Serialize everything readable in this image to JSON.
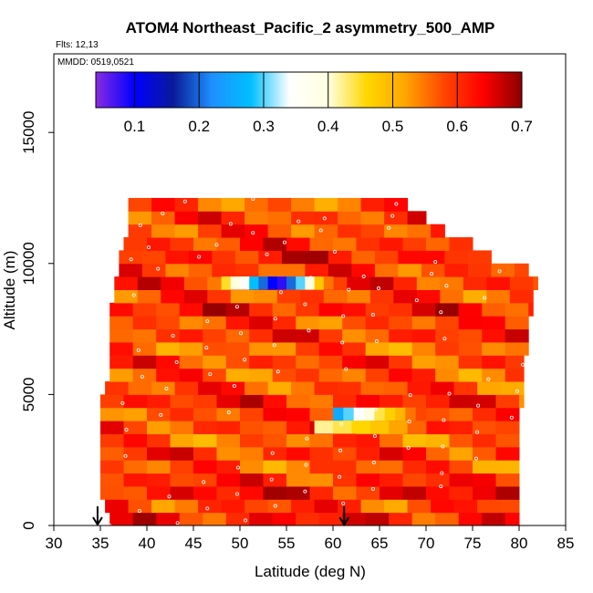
{
  "chart_data": {
    "type": "heatmap",
    "title": "ATOM4 Northeast_Pacific_2 asymmetry_500_AMP",
    "flights_note": "Flts: 12,13",
    "date_note": "MMDD: 0519,0521",
    "xlabel": "Latitude (deg N)",
    "ylabel": "Altitude (m)",
    "xlim": [
      30,
      85
    ],
    "ylim": [
      0,
      18000
    ],
    "x_ticks": [
      30,
      35,
      40,
      45,
      50,
      55,
      60,
      65,
      70,
      75,
      80,
      85
    ],
    "y_ticks": [
      0,
      5000,
      10000,
      15000
    ],
    "colorbar": {
      "range": [
        0.04,
        0.7
      ],
      "ticks": [
        0.1,
        0.2,
        0.3,
        0.4,
        0.5,
        0.6,
        0.7
      ],
      "stops": [
        "#8a2be2",
        "#0000ff",
        "#0a1a99",
        "#1e90ff",
        "#00bfff",
        "#ffffff",
        "#ffffe0",
        "#ffd700",
        "#ffa500",
        "#ff4500",
        "#ff0000",
        "#8b0000"
      ]
    },
    "altitude_bands": [
      {
        "alt": [
          0,
          500
        ],
        "lat": [
          36,
          80
        ],
        "value": 0.62
      },
      {
        "alt": [
          500,
          1000
        ],
        "lat": [
          35.5,
          80
        ],
        "value": 0.59
      },
      {
        "alt": [
          1000,
          1500
        ],
        "lat": [
          35,
          80
        ],
        "value": 0.63
      },
      {
        "alt": [
          1500,
          2000
        ],
        "lat": [
          35,
          80
        ],
        "value": 0.6
      },
      {
        "alt": [
          2000,
          2500
        ],
        "lat": [
          35,
          80
        ],
        "value": 0.57
      },
      {
        "alt": [
          2500,
          3000
        ],
        "lat": [
          35,
          80
        ],
        "value": 0.6
      },
      {
        "alt": [
          3000,
          3500
        ],
        "lat": [
          35,
          80
        ],
        "value": 0.56
      },
      {
        "alt": [
          3500,
          4000
        ],
        "lat": [
          35,
          80
        ],
        "value": 0.59
      },
      {
        "alt": [
          4000,
          4500
        ],
        "lat": [
          35,
          80
        ],
        "value": 0.58
      },
      {
        "alt": [
          4500,
          5000
        ],
        "lat": [
          35,
          80.5
        ],
        "value": 0.61
      },
      {
        "alt": [
          5000,
          5500
        ],
        "lat": [
          35.5,
          80.5
        ],
        "value": 0.58
      },
      {
        "alt": [
          5500,
          6000
        ],
        "lat": [
          36,
          80.5
        ],
        "value": 0.57
      },
      {
        "alt": [
          6000,
          6500
        ],
        "lat": [
          36,
          80.5
        ],
        "value": 0.59
      },
      {
        "alt": [
          6500,
          7000
        ],
        "lat": [
          36,
          81
        ],
        "value": 0.56
      },
      {
        "alt": [
          7000,
          7500
        ],
        "lat": [
          36,
          81
        ],
        "value": 0.6
      },
      {
        "alt": [
          7500,
          8000
        ],
        "lat": [
          36,
          81
        ],
        "value": 0.58
      },
      {
        "alt": [
          8000,
          8500
        ],
        "lat": [
          36,
          81.5
        ],
        "value": 0.62
      },
      {
        "alt": [
          8500,
          9000
        ],
        "lat": [
          36.5,
          81.5
        ],
        "value": 0.58
      },
      {
        "alt": [
          9000,
          9500
        ],
        "lat": [
          36.5,
          82
        ],
        "value": 0.6
      },
      {
        "alt": [
          9500,
          10000
        ],
        "lat": [
          37,
          81
        ],
        "value": 0.59
      },
      {
        "alt": [
          10000,
          10500
        ],
        "lat": [
          37,
          77
        ],
        "value": 0.62
      },
      {
        "alt": [
          10500,
          11000
        ],
        "lat": [
          37.5,
          75
        ],
        "value": 0.6
      },
      {
        "alt": [
          11000,
          11500
        ],
        "lat": [
          38,
          72
        ],
        "value": 0.58
      },
      {
        "alt": [
          11500,
          12000
        ],
        "lat": [
          38,
          70
        ],
        "value": 0.59
      },
      {
        "alt": [
          12000,
          12500
        ],
        "lat": [
          38,
          68
        ],
        "value": 0.56
      }
    ],
    "features": [
      {
        "label": "low asymmetry layer ~9.3 km",
        "alt": [
          9000,
          9500
        ],
        "lat": [
          48,
          60
        ],
        "values": [
          0.45,
          0.4,
          0.35,
          0.28,
          0.2,
          0.1,
          0.08,
          0.2,
          0.3,
          0.4,
          0.48,
          0.55
        ]
      },
      {
        "label": "low asymmetry layer ~4.3 km",
        "alt": [
          4000,
          4500
        ],
        "lat": [
          60,
          70
        ],
        "values": [
          0.25,
          0.3,
          0.34,
          0.4,
          0.44,
          0.47,
          0.5,
          0.55,
          0.58
        ]
      },
      {
        "label": "pale layer ~3.7 km",
        "alt": [
          3500,
          4000
        ],
        "lat": [
          58,
          70
        ],
        "values": [
          0.42,
          0.44,
          0.46,
          0.48,
          0.52,
          0.56
        ]
      }
    ],
    "markers": [
      {
        "label": "profile arrow",
        "lat": 34.7
      },
      {
        "label": "profile arrow",
        "lat": 61.2
      }
    ]
  }
}
